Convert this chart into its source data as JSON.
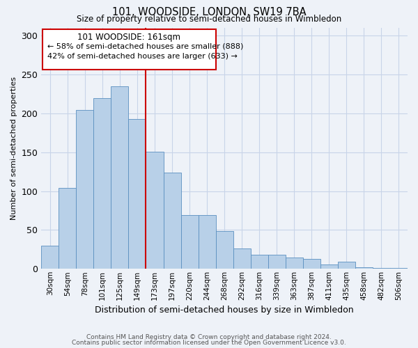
{
  "title1": "101, WOODSIDE, LONDON, SW19 7BA",
  "title2": "Size of property relative to semi-detached houses in Wimbledon",
  "xlabel": "Distribution of semi-detached houses by size in Wimbledon",
  "ylabel": "Number of semi-detached properties",
  "categories": [
    "30sqm",
    "54sqm",
    "78sqm",
    "101sqm",
    "125sqm",
    "149sqm",
    "173sqm",
    "197sqm",
    "220sqm",
    "244sqm",
    "268sqm",
    "292sqm",
    "316sqm",
    "339sqm",
    "363sqm",
    "387sqm",
    "411sqm",
    "435sqm",
    "458sqm",
    "482sqm",
    "506sqm"
  ],
  "bar_heights": [
    30,
    104,
    204,
    220,
    235,
    193,
    151,
    124,
    69,
    69,
    49,
    26,
    18,
    18,
    15,
    13,
    6,
    9,
    2,
    1,
    1
  ],
  "bar_color": "#b8d0e8",
  "bar_edge_color": "#5a8fc0",
  "grid_color": "#c8d4e8",
  "background_color": "#eef2f8",
  "vline_x": 5.5,
  "vline_color": "#cc0000",
  "box_text_line1": "101 WOODSIDE: 161sqm",
  "box_text_line2": "← 58% of semi-detached houses are smaller (888)",
  "box_text_line3": "42% of semi-detached houses are larger (633) →",
  "box_edge_color": "#cc0000",
  "footer1": "Contains HM Land Registry data © Crown copyright and database right 2024.",
  "footer2": "Contains public sector information licensed under the Open Government Licence v3.0.",
  "ylim": [
    0,
    310
  ],
  "yticks": [
    0,
    50,
    100,
    150,
    200,
    250,
    300
  ]
}
